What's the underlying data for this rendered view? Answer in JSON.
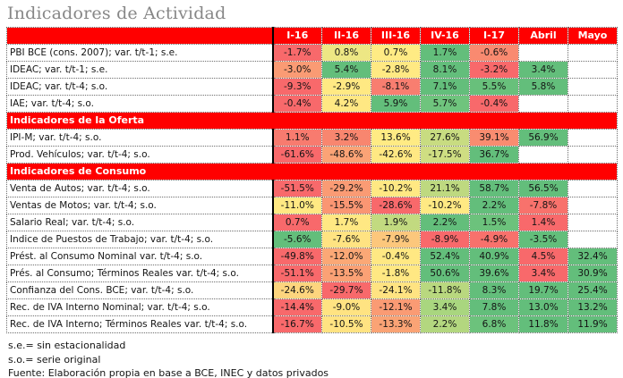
{
  "title": "Indicadores de Actividad",
  "colors": {
    "band_red": "#FF0000",
    "header_text": "#FFFFFF",
    "title_gray": "#878787",
    "scale_red": "#F8696B",
    "scale_yellow": "#FFEB84",
    "scale_green": "#63BE7B",
    "blank_cell": "#FFFFFF"
  },
  "footnotes": {
    "line1": "s.e.= sin estacionalidad",
    "line2": "s.o.= serie original",
    "line3": "Fuente: Elaboración propia en base a BCE, INEC y datos privados"
  },
  "chart_data": {
    "type": "table",
    "subtype": "heatmap",
    "columns": [
      "I-16",
      "II-16",
      "III-16",
      "IV-16",
      "I-17",
      "Abril",
      "Mayo"
    ],
    "rows": [
      {
        "type": "data",
        "label": "PBI BCE (cons. 2007); var. t/t-1; s.e.",
        "cells": [
          {
            "v": "-1.7%",
            "bg": "#F8696B"
          },
          {
            "v": "0.8%",
            "bg": "#EDE784"
          },
          {
            "v": "0.7%",
            "bg": "#FFEB84"
          },
          {
            "v": "1.7%",
            "bg": "#63BE7B"
          },
          {
            "v": "-0.6%",
            "bg": "#F98A70"
          },
          {
            "v": "",
            "bg": "#FFFFFF"
          },
          {
            "v": "",
            "bg": "#FFFFFF"
          }
        ]
      },
      {
        "type": "data",
        "label": "IDEAC; var. t/t-1; s.e.",
        "cells": [
          {
            "v": "-3.0%",
            "bg": "#FA9B74"
          },
          {
            "v": "5.4%",
            "bg": "#63BE7B"
          },
          {
            "v": "-2.8%",
            "bg": "#FFE983"
          },
          {
            "v": "8.1%",
            "bg": "#63BE7B"
          },
          {
            "v": "-3.2%",
            "bg": "#F8696B"
          },
          {
            "v": "3.4%",
            "bg": "#63BE7B"
          },
          {
            "v": "",
            "bg": "#FFFFFF"
          }
        ]
      },
      {
        "type": "data",
        "label": "IDEAC; var. t/t-4; s.o.",
        "cells": [
          {
            "v": "-9.3%",
            "bg": "#F8696B"
          },
          {
            "v": "-2.9%",
            "bg": "#FFE983"
          },
          {
            "v": "-8.1%",
            "bg": "#F87E70"
          },
          {
            "v": "7.1%",
            "bg": "#63BE7B"
          },
          {
            "v": "5.5%",
            "bg": "#68C07B"
          },
          {
            "v": "5.8%",
            "bg": "#63BE7B"
          },
          {
            "v": "",
            "bg": "#FFFFFF"
          }
        ]
      },
      {
        "type": "data",
        "label": "IAE; var. t/t-4; s.o.",
        "cells": [
          {
            "v": "-0.4%",
            "bg": "#F8696B"
          },
          {
            "v": "4.2%",
            "bg": "#FFE883"
          },
          {
            "v": "5.9%",
            "bg": "#63BE7B"
          },
          {
            "v": "5.7%",
            "bg": "#6FC47D"
          },
          {
            "v": "-0.4%",
            "bg": "#F8696B"
          },
          {
            "v": "",
            "bg": "#FFFFFF"
          },
          {
            "v": "",
            "bg": "#FFFFFF"
          }
        ]
      },
      {
        "type": "section",
        "label": "Indicadores de la Oferta"
      },
      {
        "type": "data",
        "label": "IPI-M; var. t/t-4; s.o.",
        "cells": [
          {
            "v": "1.1%",
            "bg": "#F87B6F"
          },
          {
            "v": "3.2%",
            "bg": "#F8866F"
          },
          {
            "v": "13.6%",
            "bg": "#FFEB84"
          },
          {
            "v": "27.6%",
            "bg": "#C8DC81"
          },
          {
            "v": "39.1%",
            "bg": "#F98C70"
          },
          {
            "v": "56.9%",
            "bg": "#63BE7B"
          },
          {
            "v": "",
            "bg": "#FFFFFF"
          }
        ]
      },
      {
        "type": "data",
        "label": "Prod. Vehículos; var. t/t-4; s.o.",
        "cells": [
          {
            "v": "-61.6%",
            "bg": "#F8696B"
          },
          {
            "v": "-48.6%",
            "bg": "#FBA376"
          },
          {
            "v": "-42.6%",
            "bg": "#FFE883"
          },
          {
            "v": "-17.5%",
            "bg": "#CFDE82"
          },
          {
            "v": "36.7%",
            "bg": "#63BE7B"
          },
          {
            "v": "",
            "bg": "#FFFFFF"
          },
          {
            "v": "",
            "bg": "#FFFFFF"
          }
        ]
      },
      {
        "type": "section",
        "label": "Indicadores de Consumo"
      },
      {
        "type": "data",
        "label": "Venta de Autos; var. t/t-4; s.o.",
        "cells": [
          {
            "v": "-51.5%",
            "bg": "#F8696B"
          },
          {
            "v": "-29.2%",
            "bg": "#FA9B74"
          },
          {
            "v": "-10.2%",
            "bg": "#FFE883"
          },
          {
            "v": "21.1%",
            "bg": "#BED980"
          },
          {
            "v": "58.7%",
            "bg": "#63BE7B"
          },
          {
            "v": "56.5%",
            "bg": "#63BE7B"
          },
          {
            "v": "",
            "bg": "#FFFFFF"
          }
        ]
      },
      {
        "type": "data",
        "label": "Ventas de Motos; var. t/t-4; s.o.",
        "cells": [
          {
            "v": "-11.0%",
            "bg": "#FFE983"
          },
          {
            "v": "-15.5%",
            "bg": "#FA9673"
          },
          {
            "v": "-28.6%",
            "bg": "#F8696B"
          },
          {
            "v": "-10.2%",
            "bg": "#FFE983"
          },
          {
            "v": "2.2%",
            "bg": "#63BE7B"
          },
          {
            "v": "-7.8%",
            "bg": "#F8726C"
          },
          {
            "v": "",
            "bg": "#FFFFFF"
          }
        ]
      },
      {
        "type": "data",
        "label": "Salario Real; var. t/t-4; s.o.",
        "cells": [
          {
            "v": "0.7%",
            "bg": "#F8696B"
          },
          {
            "v": "1.7%",
            "bg": "#FFE883"
          },
          {
            "v": "1.9%",
            "bg": "#C2DA80"
          },
          {
            "v": "2.2%",
            "bg": "#63BE7B"
          },
          {
            "v": "1.5%",
            "bg": "#6CC27C"
          },
          {
            "v": "1.4%",
            "bg": "#F8696B"
          },
          {
            "v": "",
            "bg": "#FFFFFF"
          }
        ]
      },
      {
        "type": "data",
        "label": "Indice de Puestos de Trabajo; var. t/t-4; s.o.",
        "cells": [
          {
            "v": "-5.6%",
            "bg": "#63BE7B"
          },
          {
            "v": "-7.6%",
            "bg": "#FFE382"
          },
          {
            "v": "-7.9%",
            "bg": "#FCC77C"
          },
          {
            "v": "-8.9%",
            "bg": "#F8696B"
          },
          {
            "v": "-4.9%",
            "bg": "#F8716C"
          },
          {
            "v": "-3.5%",
            "bg": "#63BE7B"
          },
          {
            "v": "",
            "bg": "#FFFFFF"
          }
        ]
      },
      {
        "type": "data",
        "label": "Prést. al Consumo Nominal var. t/t-4; s.o.",
        "cells": [
          {
            "v": "-49.8%",
            "bg": "#F8696B"
          },
          {
            "v": "-12.0%",
            "bg": "#FBA876"
          },
          {
            "v": "-0.4%",
            "bg": "#FFE883"
          },
          {
            "v": "52.4%",
            "bg": "#63BE7B"
          },
          {
            "v": "40.9%",
            "bg": "#63BE7B"
          },
          {
            "v": "4.5%",
            "bg": "#F8696B"
          },
          {
            "v": "32.4%",
            "bg": "#63BE7B"
          }
        ]
      },
      {
        "type": "data",
        "label": "Prés. al Consumo; Términos Reales var. t/t-4; s.o.",
        "cells": [
          {
            "v": "-51.1%",
            "bg": "#F8696B"
          },
          {
            "v": "-13.5%",
            "bg": "#FBA175"
          },
          {
            "v": "-1.8%",
            "bg": "#FFE883"
          },
          {
            "v": "50.6%",
            "bg": "#63BE7B"
          },
          {
            "v": "39.6%",
            "bg": "#63BE7B"
          },
          {
            "v": "3.4%",
            "bg": "#F8696B"
          },
          {
            "v": "30.9%",
            "bg": "#63BE7B"
          }
        ]
      },
      {
        "type": "data",
        "label": "Confianza del Cons. BCE; var. t/t-4; s.o.",
        "cells": [
          {
            "v": "-24.6%",
            "bg": "#FDD57E"
          },
          {
            "v": "-29.7%",
            "bg": "#F8696B"
          },
          {
            "v": "-24.1%",
            "bg": "#FFE382"
          },
          {
            "v": "-11.8%",
            "bg": "#B9D87F"
          },
          {
            "v": "8.3%",
            "bg": "#63BE7B"
          },
          {
            "v": "19.7%",
            "bg": "#63BE7B"
          },
          {
            "v": "25.4%",
            "bg": "#63BE7B"
          }
        ]
      },
      {
        "type": "data",
        "label": "Rec. de IVA Interno Nominal; var. t/t-4; s.o.",
        "cells": [
          {
            "v": "-14.4%",
            "bg": "#F8696B"
          },
          {
            "v": "-9.0%",
            "bg": "#FFE382"
          },
          {
            "v": "-12.1%",
            "bg": "#FA9B74"
          },
          {
            "v": "3.4%",
            "bg": "#A9D67F"
          },
          {
            "v": "7.8%",
            "bg": "#63BE7B"
          },
          {
            "v": "13.0%",
            "bg": "#63BE7B"
          },
          {
            "v": "13.2%",
            "bg": "#63BE7B"
          }
        ]
      },
      {
        "type": "data",
        "label": "Rec. de IVA Interno; Términos Reales var. t/t-4; s.o.",
        "cells": [
          {
            "v": "-16.7%",
            "bg": "#F8696B"
          },
          {
            "v": "-10.5%",
            "bg": "#FFE382"
          },
          {
            "v": "-13.3%",
            "bg": "#FAA375"
          },
          {
            "v": "2.2%",
            "bg": "#B3D77F"
          },
          {
            "v": "6.8%",
            "bg": "#6CC27C"
          },
          {
            "v": "11.8%",
            "bg": "#63BE7B"
          },
          {
            "v": "11.9%",
            "bg": "#63BE7B"
          }
        ]
      }
    ]
  }
}
